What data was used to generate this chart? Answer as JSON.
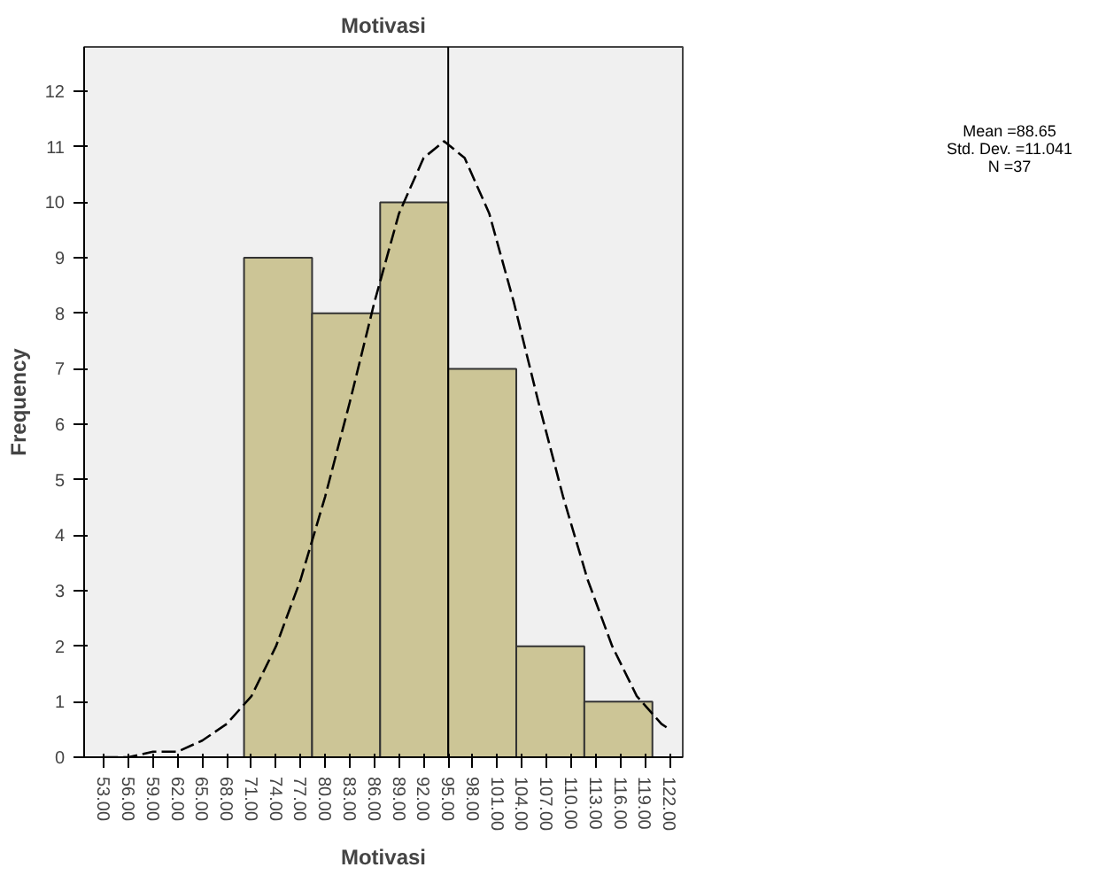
{
  "chart_data": {
    "type": "histogram",
    "title": "Motivasi",
    "xlabel": "Motivasi",
    "ylabel": "Frequency",
    "bins": [
      70.1,
      78.4,
      86.7,
      95.0,
      103.3,
      111.6,
      119.9
    ],
    "values": [
      9,
      8,
      10,
      7,
      2,
      1
    ],
    "color": "#ccc596",
    "series": [
      {
        "type": "line",
        "color": "#000000",
        "line_style": "dashed",
        "x": [
          53,
          56,
          59,
          62,
          65,
          68,
          71,
          74,
          77,
          80,
          83,
          86,
          89,
          92,
          94.5,
          97,
          100,
          103,
          106,
          109,
          112,
          115,
          118,
          121,
          122
        ],
        "values": [
          0.0,
          0.0,
          0.1,
          0.1,
          0.3,
          0.6,
          1.1,
          2.0,
          3.2,
          4.7,
          6.4,
          8.2,
          9.8,
          10.8,
          11.1,
          10.8,
          9.8,
          8.2,
          6.4,
          4.7,
          3.2,
          2.0,
          1.1,
          0.6,
          0.5
        ]
      }
    ],
    "ref_lines": [
      {
        "axis": "x",
        "value": 95.0,
        "color": "#000000"
      }
    ],
    "xlim": [
      50.6,
      123.6
    ],
    "ylim": [
      0,
      12.8
    ],
    "xticks": [
      {
        "value": 53,
        "label": "53.00"
      },
      {
        "value": 56,
        "label": "56.00"
      },
      {
        "value": 59,
        "label": "59.00"
      },
      {
        "value": 62,
        "label": "62.00"
      },
      {
        "value": 65,
        "label": "65.00"
      },
      {
        "value": 68,
        "label": "68.00"
      },
      {
        "value": 71,
        "label": "71.00"
      },
      {
        "value": 74,
        "label": "74.00"
      },
      {
        "value": 77,
        "label": "77.00"
      },
      {
        "value": 80,
        "label": "80.00"
      },
      {
        "value": 83,
        "label": "83.00"
      },
      {
        "value": 86,
        "label": "86.00"
      },
      {
        "value": 89,
        "label": "89.00"
      },
      {
        "value": 92,
        "label": "92.00"
      },
      {
        "value": 95,
        "label": "95.00"
      },
      {
        "value": 98,
        "label": "98.00"
      },
      {
        "value": 101,
        "label": "101.00"
      },
      {
        "value": 104,
        "label": "104.00"
      },
      {
        "value": 107,
        "label": "107.00"
      },
      {
        "value": 110,
        "label": "110.00"
      },
      {
        "value": 113,
        "label": "113.00"
      },
      {
        "value": 116,
        "label": "116.00"
      },
      {
        "value": 119,
        "label": "119.00"
      },
      {
        "value": 122,
        "label": "122.00"
      }
    ],
    "yticks": [
      0,
      1,
      2,
      3,
      4,
      5,
      6,
      7,
      8,
      9,
      10,
      11,
      12
    ],
    "annotations": [
      "Mean =88.65",
      "Std. Dev. =11.041",
      "N =37"
    ],
    "grid": false
  }
}
